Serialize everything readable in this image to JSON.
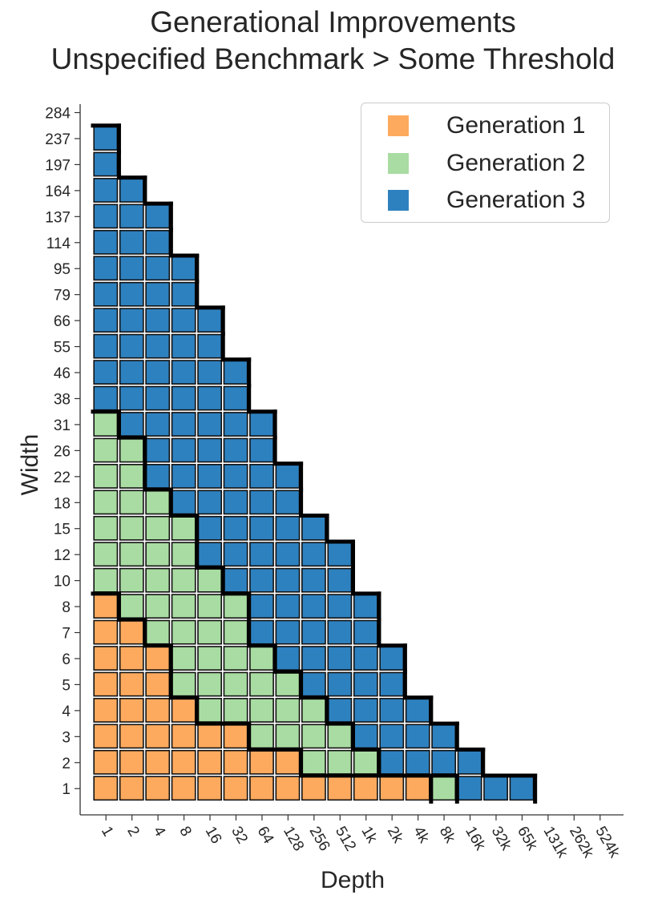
{
  "chart_data": {
    "type": "heatmap",
    "title": "Generational Improvements",
    "subtitle": "Unspecified Benchmark > Some Threshold",
    "xlabel": "Depth",
    "ylabel": "Width",
    "x_ticks": [
      "1",
      "2",
      "4",
      "8",
      "16",
      "32",
      "64",
      "128",
      "256",
      "512",
      "1k",
      "2k",
      "4k",
      "8k",
      "16k",
      "32k",
      "65k",
      "131k",
      "262k",
      "524k"
    ],
    "y_ticks": [
      "1",
      "2",
      "3",
      "4",
      "5",
      "6",
      "7",
      "8",
      "10",
      "12",
      "15",
      "18",
      "22",
      "26",
      "31",
      "38",
      "46",
      "55",
      "66",
      "79",
      "95",
      "114",
      "137",
      "164",
      "197",
      "237",
      "284"
    ],
    "legend": [
      {
        "label": "Generation 1",
        "color": "#fdaa5e"
      },
      {
        "label": "Generation 2",
        "color": "#a9dca2"
      },
      {
        "label": "Generation 3",
        "color": "#2e81bf"
      }
    ],
    "legend_position": "top-right",
    "grid": [
      [
        1,
        1,
        1,
        1,
        1,
        1,
        1,
        1,
        1,
        1,
        1,
        1,
        1,
        2,
        3,
        3,
        3
      ],
      [
        1,
        1,
        1,
        1,
        1,
        1,
        1,
        1,
        2,
        2,
        2,
        3,
        3,
        3,
        3
      ],
      [
        1,
        1,
        1,
        1,
        1,
        1,
        2,
        2,
        2,
        2,
        3,
        3,
        3,
        3
      ],
      [
        1,
        1,
        1,
        1,
        2,
        2,
        2,
        2,
        2,
        3,
        3,
        3,
        3
      ],
      [
        1,
        1,
        1,
        2,
        2,
        2,
        2,
        2,
        3,
        3,
        3,
        3
      ],
      [
        1,
        1,
        1,
        2,
        2,
        2,
        2,
        3,
        3,
        3,
        3,
        3
      ],
      [
        1,
        1,
        2,
        2,
        2,
        2,
        3,
        3,
        3,
        3,
        3
      ],
      [
        1,
        2,
        2,
        2,
        2,
        2,
        3,
        3,
        3,
        3,
        3
      ],
      [
        2,
        2,
        2,
        2,
        2,
        3,
        3,
        3,
        3,
        3
      ],
      [
        2,
        2,
        2,
        2,
        3,
        3,
        3,
        3,
        3,
        3
      ],
      [
        2,
        2,
        2,
        2,
        3,
        3,
        3,
        3,
        3
      ],
      [
        2,
        2,
        2,
        3,
        3,
        3,
        3,
        3
      ],
      [
        2,
        2,
        3,
        3,
        3,
        3,
        3,
        3
      ],
      [
        2,
        2,
        3,
        3,
        3,
        3,
        3
      ],
      [
        2,
        3,
        3,
        3,
        3,
        3,
        3
      ],
      [
        3,
        3,
        3,
        3,
        3,
        3
      ],
      [
        3,
        3,
        3,
        3,
        3,
        3
      ],
      [
        3,
        3,
        3,
        3,
        3
      ],
      [
        3,
        3,
        3,
        3,
        3
      ],
      [
        3,
        3,
        3,
        3
      ],
      [
        3,
        3,
        3,
        3
      ],
      [
        3,
        3,
        3
      ],
      [
        3,
        3,
        3
      ],
      [
        3,
        3
      ],
      [
        3
      ],
      [
        3
      ]
    ]
  }
}
